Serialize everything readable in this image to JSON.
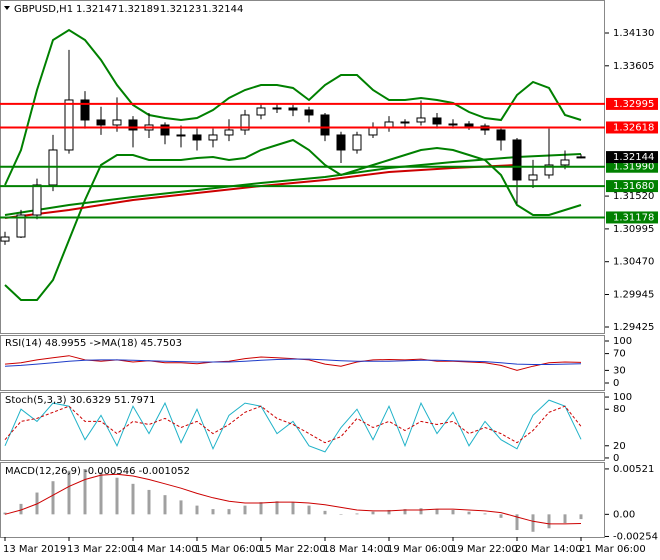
{
  "chart_data": [
    {
      "type": "candlestick",
      "symbol": "GBPUSD,H1",
      "categories": [
        "13 Mar 2019",
        null,
        null,
        null,
        "13 Mar 22:00",
        null,
        null,
        null,
        "14 Mar 14:00",
        null,
        null,
        null,
        "15 Mar 06:00",
        null,
        null,
        null,
        "15 Mar 22:00",
        null,
        null,
        null,
        "18 Mar 14:00",
        null,
        null,
        null,
        "19 Mar 06:00",
        null,
        null,
        null,
        "19 Mar 22:00",
        null,
        null,
        null,
        "20 Mar 14:00",
        null,
        null,
        null,
        "21 Mar 06:00"
      ],
      "open": [
        1.308,
        1.30865,
        1.31217,
        1.31698,
        1.32258,
        1.33058,
        1.32738,
        1.32658,
        1.32738,
        1.32578,
        1.32658,
        1.32498,
        1.32498,
        1.32418,
        1.32498,
        1.32578,
        1.32818,
        1.3293,
        1.3293,
        1.32898,
        1.32818,
        1.32498,
        1.32258,
        1.32498,
        1.3261,
        1.32706,
        1.32706,
        1.3277,
        1.32674,
        1.32674,
        1.32642,
        1.32578,
        1.32418,
        1.31778,
        1.31858,
        1.32018,
        1.32147
      ],
      "high": [
        1.3095,
        1.313,
        1.318,
        1.325,
        1.3386,
        1.332,
        1.3295,
        1.331,
        1.328,
        1.3285,
        1.327,
        1.3265,
        1.326,
        1.326,
        1.3275,
        1.329,
        1.33,
        1.33,
        1.3298,
        1.3295,
        1.3285,
        1.3255,
        1.3255,
        1.327,
        1.328,
        1.3275,
        1.3305,
        1.3285,
        1.3275,
        1.3272,
        1.3268,
        1.326,
        1.3245,
        1.321,
        1.326,
        1.3225,
        1.32189
      ],
      "low": [
        1.3074,
        1.3085,
        1.3115,
        1.316,
        1.322,
        1.326,
        1.325,
        1.3255,
        1.323,
        1.3245,
        1.3235,
        1.323,
        1.3225,
        1.323,
        1.324,
        1.325,
        1.3275,
        1.3285,
        1.328,
        1.327,
        1.324,
        1.3205,
        1.322,
        1.3245,
        1.3255,
        1.326,
        1.3265,
        1.326,
        1.326,
        1.3258,
        1.325,
        1.3225,
        1.314,
        1.3165,
        1.318,
        1.3195,
        1.32123
      ],
      "close": [
        1.30865,
        1.31217,
        1.31698,
        1.32258,
        1.33058,
        1.32738,
        1.32658,
        1.32738,
        1.32578,
        1.32658,
        1.32498,
        1.32498,
        1.32418,
        1.32498,
        1.32578,
        1.32818,
        1.3293,
        1.3293,
        1.32898,
        1.32818,
        1.32498,
        1.32258,
        1.32498,
        1.3261,
        1.32706,
        1.32706,
        1.3277,
        1.32674,
        1.32674,
        1.32642,
        1.32578,
        1.32418,
        1.31778,
        1.31858,
        1.32018,
        1.32098,
        1.32144
      ],
      "up_color": "#ffffff",
      "down_color": "#000000",
      "price_label_color": "#000000",
      "lines": [
        {
          "color": "#008000",
          "values": [
            1.31698,
            1.32258,
            1.33218,
            1.34018,
            1.34178,
            1.34018,
            1.33698,
            1.33298,
            1.32978,
            1.32818,
            1.3277,
            1.32738,
            1.3277,
            1.32898,
            1.3309,
            1.33218,
            1.33298,
            1.33298,
            1.3325,
            1.33058,
            1.33298,
            1.33458,
            1.33458,
            1.33218,
            1.33058,
            1.33058,
            1.3309,
            1.33058,
            1.3301,
            1.32866,
            1.3277,
            1.32738,
            1.33138,
            1.33346,
            1.3325,
            1.32818,
            1.32738
          ]
        },
        {
          "color": "#008000",
          "values": [
            1.30097,
            1.29857,
            1.29857,
            1.30177,
            1.30817,
            1.31458,
            1.32018,
            1.32178,
            1.32178,
            1.32098,
            1.32098,
            1.32098,
            1.3213,
            1.32146,
            1.32098,
            1.3213,
            1.32258,
            1.32338,
            1.32418,
            1.32258,
            1.32018,
            1.31858,
            1.31938,
            1.32018,
            1.32098,
            1.32178,
            1.32258,
            1.3229,
            1.32258,
            1.32178,
            1.32098,
            1.31858,
            1.31378,
            1.31217,
            1.31217,
            1.31298,
            1.31378
          ]
        },
        {
          "color": "#008000",
          "x": [
            0,
            4,
            8,
            12,
            16,
            20,
            24,
            28,
            32,
            36
          ],
          "values": [
            1.31217,
            1.31378,
            1.31505,
            1.31617,
            1.3173,
            1.31826,
            1.3197,
            1.32066,
            1.32146,
            1.32194
          ]
        },
        {
          "color": "#cc0000",
          "x": [
            0,
            4,
            8,
            12,
            16,
            20,
            24,
            28,
            32
          ],
          "values": [
            1.31169,
            1.31297,
            1.31458,
            1.3157,
            1.31682,
            1.31778,
            1.31906,
            1.3197,
            1.32018
          ]
        }
      ],
      "levels": [
        {
          "value": 1.32995,
          "color": "#ff0000"
        },
        {
          "value": 1.32618,
          "color": "#ff0000"
        },
        {
          "value": 1.3199,
          "label": "1.31990",
          "color": "#008000"
        },
        {
          "value": 1.3168,
          "label": "1.31680",
          "color": "#008000"
        },
        {
          "value": 1.31178,
          "color": "#008000"
        }
      ],
      "ylim": [
        1.29329,
        1.34658
      ],
      "yticks": [
        {
          "value": 1.3413,
          "label": "1.34130"
        },
        1.33605,
        {
          "value": 1.3152,
          "label": "1.31520"
        },
        1.30995,
        {
          "value": 1.3047,
          "label": "1.30470"
        },
        1.29945,
        1.29425
      ]
    },
    {
      "type": "line",
      "title": "RSI(14) 48.9955 ->MA(18) 45.7503",
      "lines": [
        {
          "color": "#cc0000",
          "values": [
            45,
            48,
            55,
            60,
            65,
            55,
            52,
            55,
            50,
            53,
            48,
            48,
            46,
            50,
            52,
            58,
            62,
            60,
            58,
            55,
            45,
            40,
            50,
            55,
            56,
            55,
            57,
            52,
            52,
            50,
            48,
            42,
            30,
            40,
            48,
            50,
            48.9955
          ]
        },
        {
          "color": "#1e3cc8",
          "values": [
            40,
            42,
            45,
            48,
            52,
            54,
            55,
            55,
            54,
            53,
            52,
            51,
            50,
            50,
            50,
            52,
            54,
            56,
            57,
            57,
            55,
            53,
            52,
            52,
            52,
            53,
            54,
            54,
            53,
            52,
            51,
            48,
            45,
            44,
            44,
            45,
            45.7503
          ]
        }
      ],
      "ylim": [
        -16.7,
        114.3
      ],
      "yticks": [
        100,
        70,
        30,
        0
      ]
    },
    {
      "type": "line",
      "title": "Stoch(5,3,3) 30.6329 51.7971",
      "lines": [
        {
          "color": "#20b2c8",
          "values": [
            20,
            80,
            60,
            90,
            85,
            30,
            70,
            20,
            85,
            40,
            90,
            25,
            80,
            15,
            70,
            90,
            85,
            40,
            60,
            20,
            10,
            50,
            80,
            30,
            85,
            20,
            90,
            40,
            75,
            20,
            60,
            30,
            15,
            70,
            95,
            85,
            30.6329
          ]
        },
        {
          "color": "#cc0000",
          "dashed": true,
          "values": [
            30,
            60,
            65,
            75,
            85,
            60,
            60,
            40,
            60,
            55,
            65,
            50,
            60,
            40,
            55,
            75,
            85,
            65,
            55,
            40,
            25,
            35,
            65,
            50,
            60,
            45,
            60,
            55,
            60,
            40,
            50,
            40,
            25,
            45,
            75,
            85,
            51.7971
          ]
        }
      ],
      "ylim": [
        -5,
        108.3
      ],
      "yticks": [
        100,
        80,
        20,
        0
      ]
    },
    {
      "type": "macd",
      "title": "MACD(12,26,9) -0.000546 -0.001052",
      "values": [
        0.0002,
        0.0012,
        0.0025,
        0.0038,
        0.005,
        0.0052,
        0.0048,
        0.0042,
        0.0035,
        0.0028,
        0.0022,
        0.0016,
        0.001,
        0.0006,
        0.0006,
        0.001,
        0.0014,
        0.0015,
        0.0014,
        0.001,
        0.0004,
        0,
        0.0001,
        0.0003,
        0.0005,
        0.0006,
        0.0007,
        0.0006,
        0.0005,
        0.0003,
        0.0001,
        -0.0004,
        -0.0018,
        -0.002,
        -0.0016,
        -0.001,
        -0.000546
      ],
      "color": "#a0a0a0",
      "lines": [
        {
          "color": "#cc0000",
          "values": [
            0,
            0.0005,
            0.0012,
            0.0022,
            0.0032,
            0.004,
            0.0045,
            0.0046,
            0.0044,
            0.004,
            0.0035,
            0.003,
            0.0024,
            0.0019,
            0.0015,
            0.0013,
            0.0013,
            0.0014,
            0.0014,
            0.0013,
            0.0011,
            0.0008,
            0.0005,
            0.0004,
            0.0004,
            0.0005,
            0.0005,
            0.0006,
            0.0006,
            0.0005,
            0.0004,
            0.0002,
            -0.0003,
            -0.0008,
            -0.0011,
            -0.0011,
            -0.001052
          ]
        }
      ],
      "ylim": [
        -0.0026,
        0.00589
      ],
      "yticks": [
        0.00521,
        {
          "value": 0,
          "label": "0.00"
        },
        -0.00254
      ]
    }
  ]
}
